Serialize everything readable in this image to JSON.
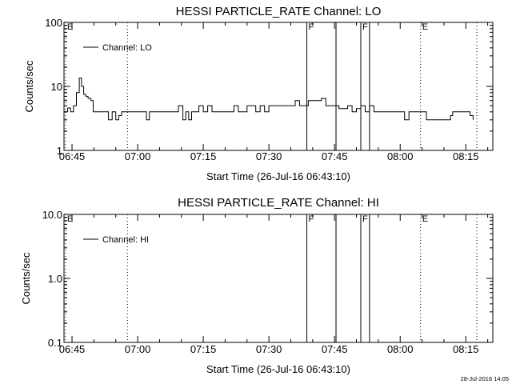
{
  "chart_data": [
    {
      "type": "line",
      "title": "HESSI PARTICLE_RATE Channel: LO",
      "xlabel": "Start Time (26-Jul-16 06:43:10)",
      "ylabel": "Counts/sec",
      "y_scale": "log",
      "xlim": [
        "06:43:10",
        "08:21:10"
      ],
      "ylim": [
        1,
        100
      ],
      "x_tick_labels": [
        "06:45",
        "07:00",
        "07:15",
        "07:30",
        "07:45",
        "08:00",
        "08:15"
      ],
      "y_tick_labels": [
        "1",
        "10",
        "100"
      ],
      "grid": false,
      "legend": "top-left",
      "series": [
        {
          "name": "Channel: LO",
          "x": [
            "06:43:10",
            "06:44:00",
            "06:44:40",
            "06:45:20",
            "06:46:00",
            "06:46:40",
            "06:47:10",
            "06:47:40",
            "06:48:10",
            "06:48:40",
            "06:49:20",
            "06:49:50",
            "06:50:20",
            "06:51:00",
            "06:51:40",
            "06:52:30",
            "06:53:20",
            "06:54:10",
            "06:55:00",
            "06:55:40",
            "06:56:20",
            "06:57:00",
            "06:57:40",
            "06:58:20",
            "06:59:00",
            "07:00:00",
            "07:01:00",
            "07:02:00",
            "07:02:40",
            "07:03:20",
            "07:04:20",
            "07:05:20",
            "07:06:20",
            "07:07:20",
            "07:08:20",
            "07:09:20",
            "07:10:20",
            "07:11:00",
            "07:11:40",
            "07:12:20",
            "07:13:00",
            "07:14:00",
            "07:15:00",
            "07:16:00",
            "07:17:00",
            "07:18:00",
            "07:19:00",
            "07:20:00",
            "07:21:00",
            "07:22:00",
            "07:23:00",
            "07:24:00",
            "07:25:00",
            "07:26:00",
            "07:27:00",
            "07:28:00",
            "07:29:00",
            "07:30:00",
            "07:31:00",
            "07:32:00",
            "07:33:00",
            "07:34:00",
            "07:35:00",
            "07:36:00",
            "07:37:00",
            "07:38:00",
            "07:39:00",
            "07:40:00",
            "07:41:00",
            "07:42:00",
            "07:43:00",
            "07:44:00",
            "07:45:00",
            "07:46:00",
            "07:47:00",
            "07:48:00",
            "07:49:00",
            "07:50:00",
            "07:51:00",
            "07:52:00",
            "07:53:00",
            "07:54:00",
            "07:55:00",
            "07:56:00",
            "07:57:00",
            "07:58:00",
            "07:59:00",
            "08:00:00",
            "08:01:00",
            "08:02:00",
            "08:03:00",
            "08:04:00",
            "08:05:00",
            "08:06:00",
            "08:07:00",
            "08:08:00",
            "08:09:00",
            "08:10:00",
            "08:11:00",
            "08:11:30",
            "08:12:00",
            "08:13:00",
            "08:14:00",
            "08:15:00",
            "08:16:00",
            "08:16:40"
          ],
          "values": [
            4,
            4.6,
            4,
            5,
            8,
            13.5,
            10,
            7.5,
            7,
            6.5,
            6,
            4,
            4,
            4,
            4,
            4,
            3,
            4,
            3,
            3.5,
            4,
            4,
            4,
            4,
            4,
            4,
            4,
            3,
            4,
            4,
            4,
            4,
            4,
            4,
            4,
            5,
            3,
            4,
            3,
            4,
            4,
            5,
            4,
            5,
            4,
            4,
            4,
            4,
            4,
            5,
            4,
            4,
            5,
            5,
            4,
            5,
            4,
            5,
            5,
            5,
            5,
            5,
            5,
            6,
            5,
            5,
            6,
            6,
            6,
            6.5,
            5,
            5,
            5,
            4.5,
            4.5,
            5,
            4,
            4.5,
            5,
            4,
            5,
            4,
            4,
            4,
            4,
            4,
            4,
            4,
            3,
            4,
            4,
            4,
            4,
            3,
            3,
            3,
            3,
            3,
            3,
            3.5,
            4,
            4,
            4,
            4,
            3.5,
            3
          ]
        }
      ],
      "flags": [
        {
          "label": "E",
          "style": "dotted",
          "time": "06:43:30"
        },
        {
          "label": "",
          "style": "dotted",
          "time": "06:57:40"
        },
        {
          "label": "F",
          "style": "solid",
          "time": "07:38:40"
        },
        {
          "label": "",
          "style": "solid",
          "time": "07:45:20"
        },
        {
          "label": "F",
          "style": "solid",
          "time": "07:51:00"
        },
        {
          "label": "",
          "style": "solid",
          "time": "07:53:00"
        },
        {
          "label": "E",
          "style": "dotted",
          "time": "08:04:40"
        },
        {
          "label": "",
          "style": "dotted",
          "time": "08:17:30"
        }
      ]
    },
    {
      "type": "line",
      "title": "HESSI PARTICLE_RATE Channel: HI",
      "xlabel": "Start Time (26-Jul-16 06:43:10)",
      "ylabel": "Counts/sec",
      "y_scale": "log",
      "xlim": [
        "06:43:10",
        "08:21:10"
      ],
      "ylim": [
        0.1,
        10
      ],
      "x_tick_labels": [
        "06:45",
        "07:00",
        "07:15",
        "07:30",
        "07:45",
        "08:00",
        "08:15"
      ],
      "y_tick_labels": [
        "0.1",
        "1.0",
        "10.0"
      ],
      "grid": false,
      "legend": "top-left",
      "series": [
        {
          "name": "Channel: HI",
          "x": [],
          "values": []
        }
      ],
      "flags": [
        {
          "label": "E",
          "style": "dotted",
          "time": "06:43:30"
        },
        {
          "label": "",
          "style": "dotted",
          "time": "06:57:40"
        },
        {
          "label": "F",
          "style": "solid",
          "time": "07:38:40"
        },
        {
          "label": "",
          "style": "solid",
          "time": "07:45:20"
        },
        {
          "label": "F",
          "style": "solid",
          "time": "07:51:00"
        },
        {
          "label": "",
          "style": "solid",
          "time": "07:53:00"
        },
        {
          "label": "E",
          "style": "dotted",
          "time": "08:04:40"
        },
        {
          "label": "",
          "style": "dotted",
          "time": "08:17:30"
        }
      ]
    }
  ],
  "footer": {
    "timestamp": "28-Jul-2016 14:05"
  }
}
